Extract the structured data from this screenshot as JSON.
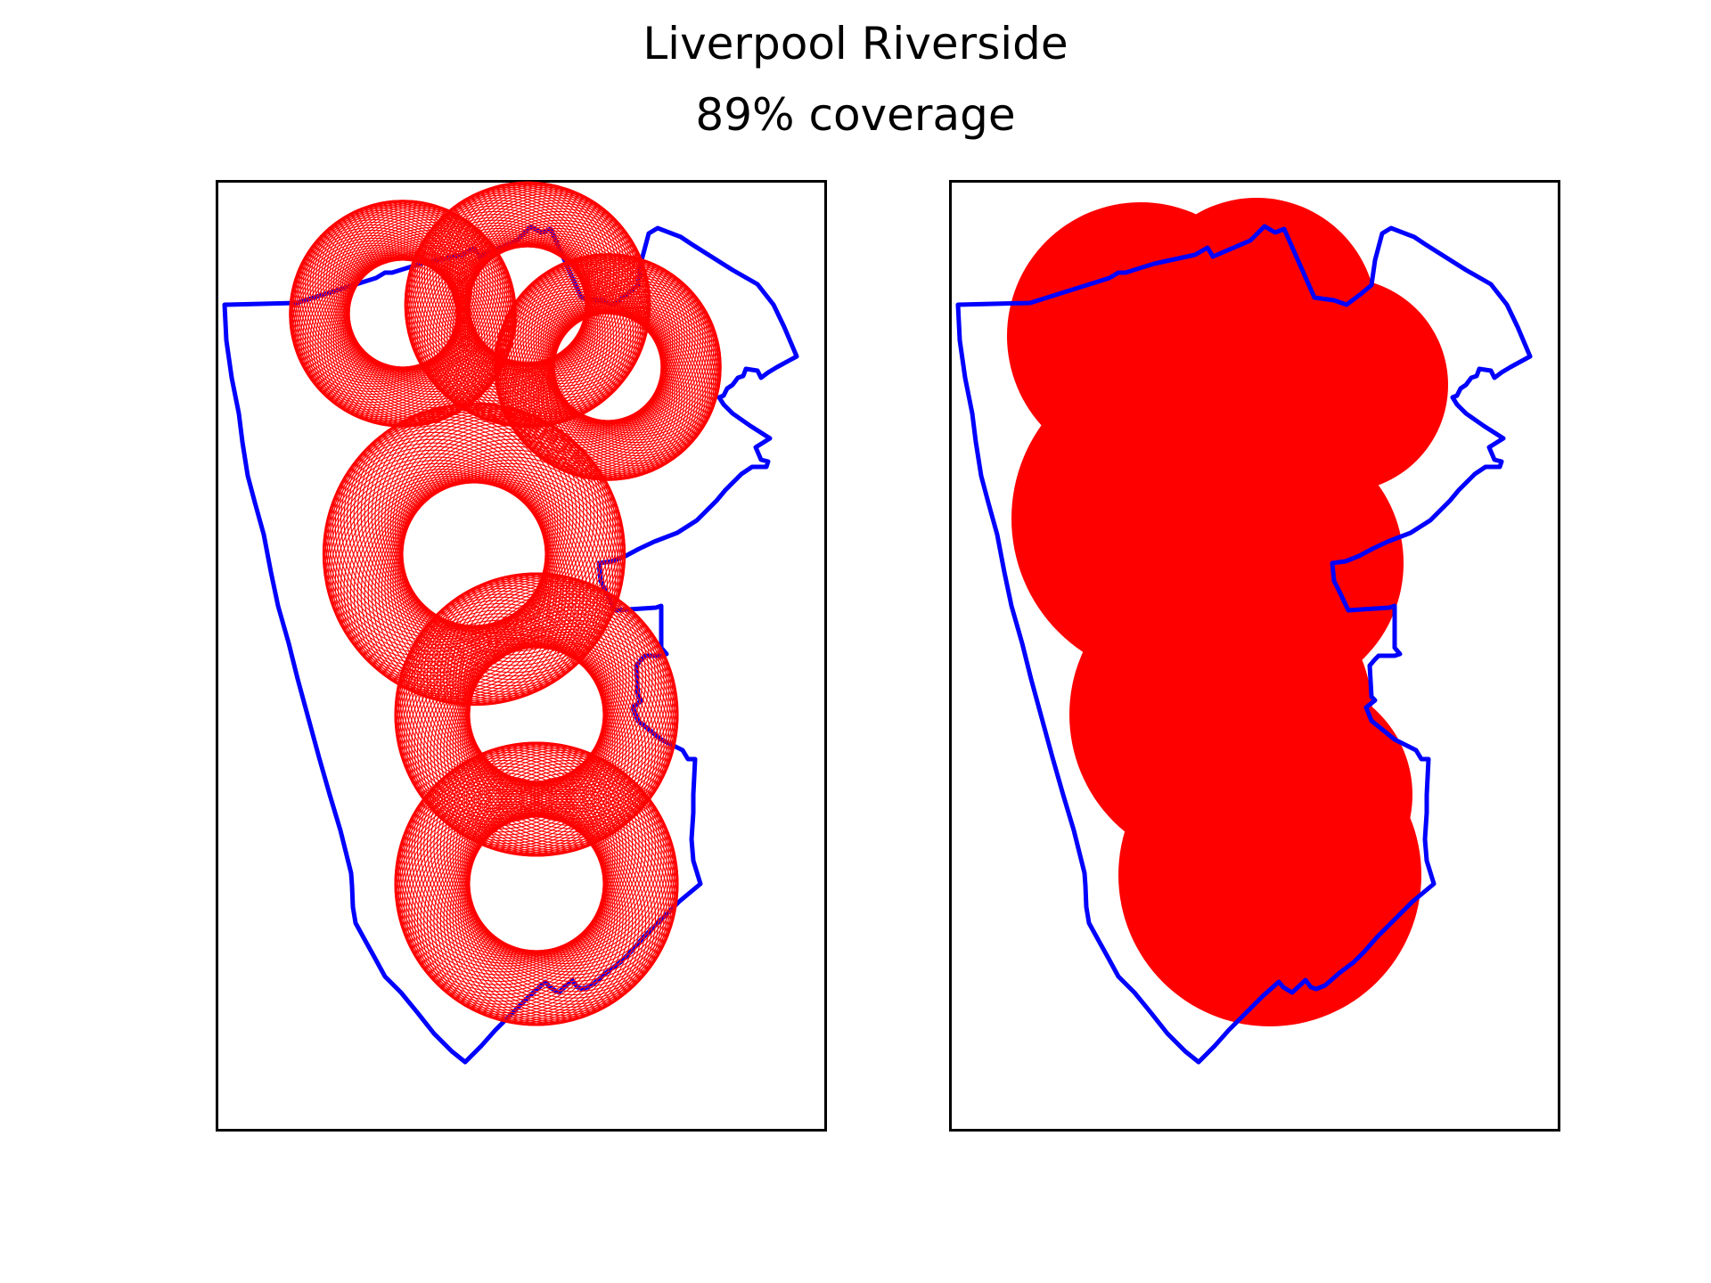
{
  "figure": {
    "title": "Liverpool Riverside",
    "subtitle": "89% coverage"
  },
  "colors": {
    "boundary": "#0000ff",
    "circles": "#ff0000",
    "frame": "#000000",
    "background": "#ffffff"
  },
  "chart_data": [
    {
      "type": "other",
      "panel": "left",
      "description_kind": "region boundary with overlapping circle outlines",
      "axes_ticks": false,
      "boundary_color": "#0000ff",
      "circle_style": "outline",
      "circle_color": "#ff0000"
    },
    {
      "type": "other",
      "panel": "right",
      "description_kind": "region boundary with filled coverage area",
      "axes_ticks": false,
      "boundary_color": "#0000ff",
      "circle_style": "filled",
      "circle_color": "#ff0000"
    }
  ]
}
